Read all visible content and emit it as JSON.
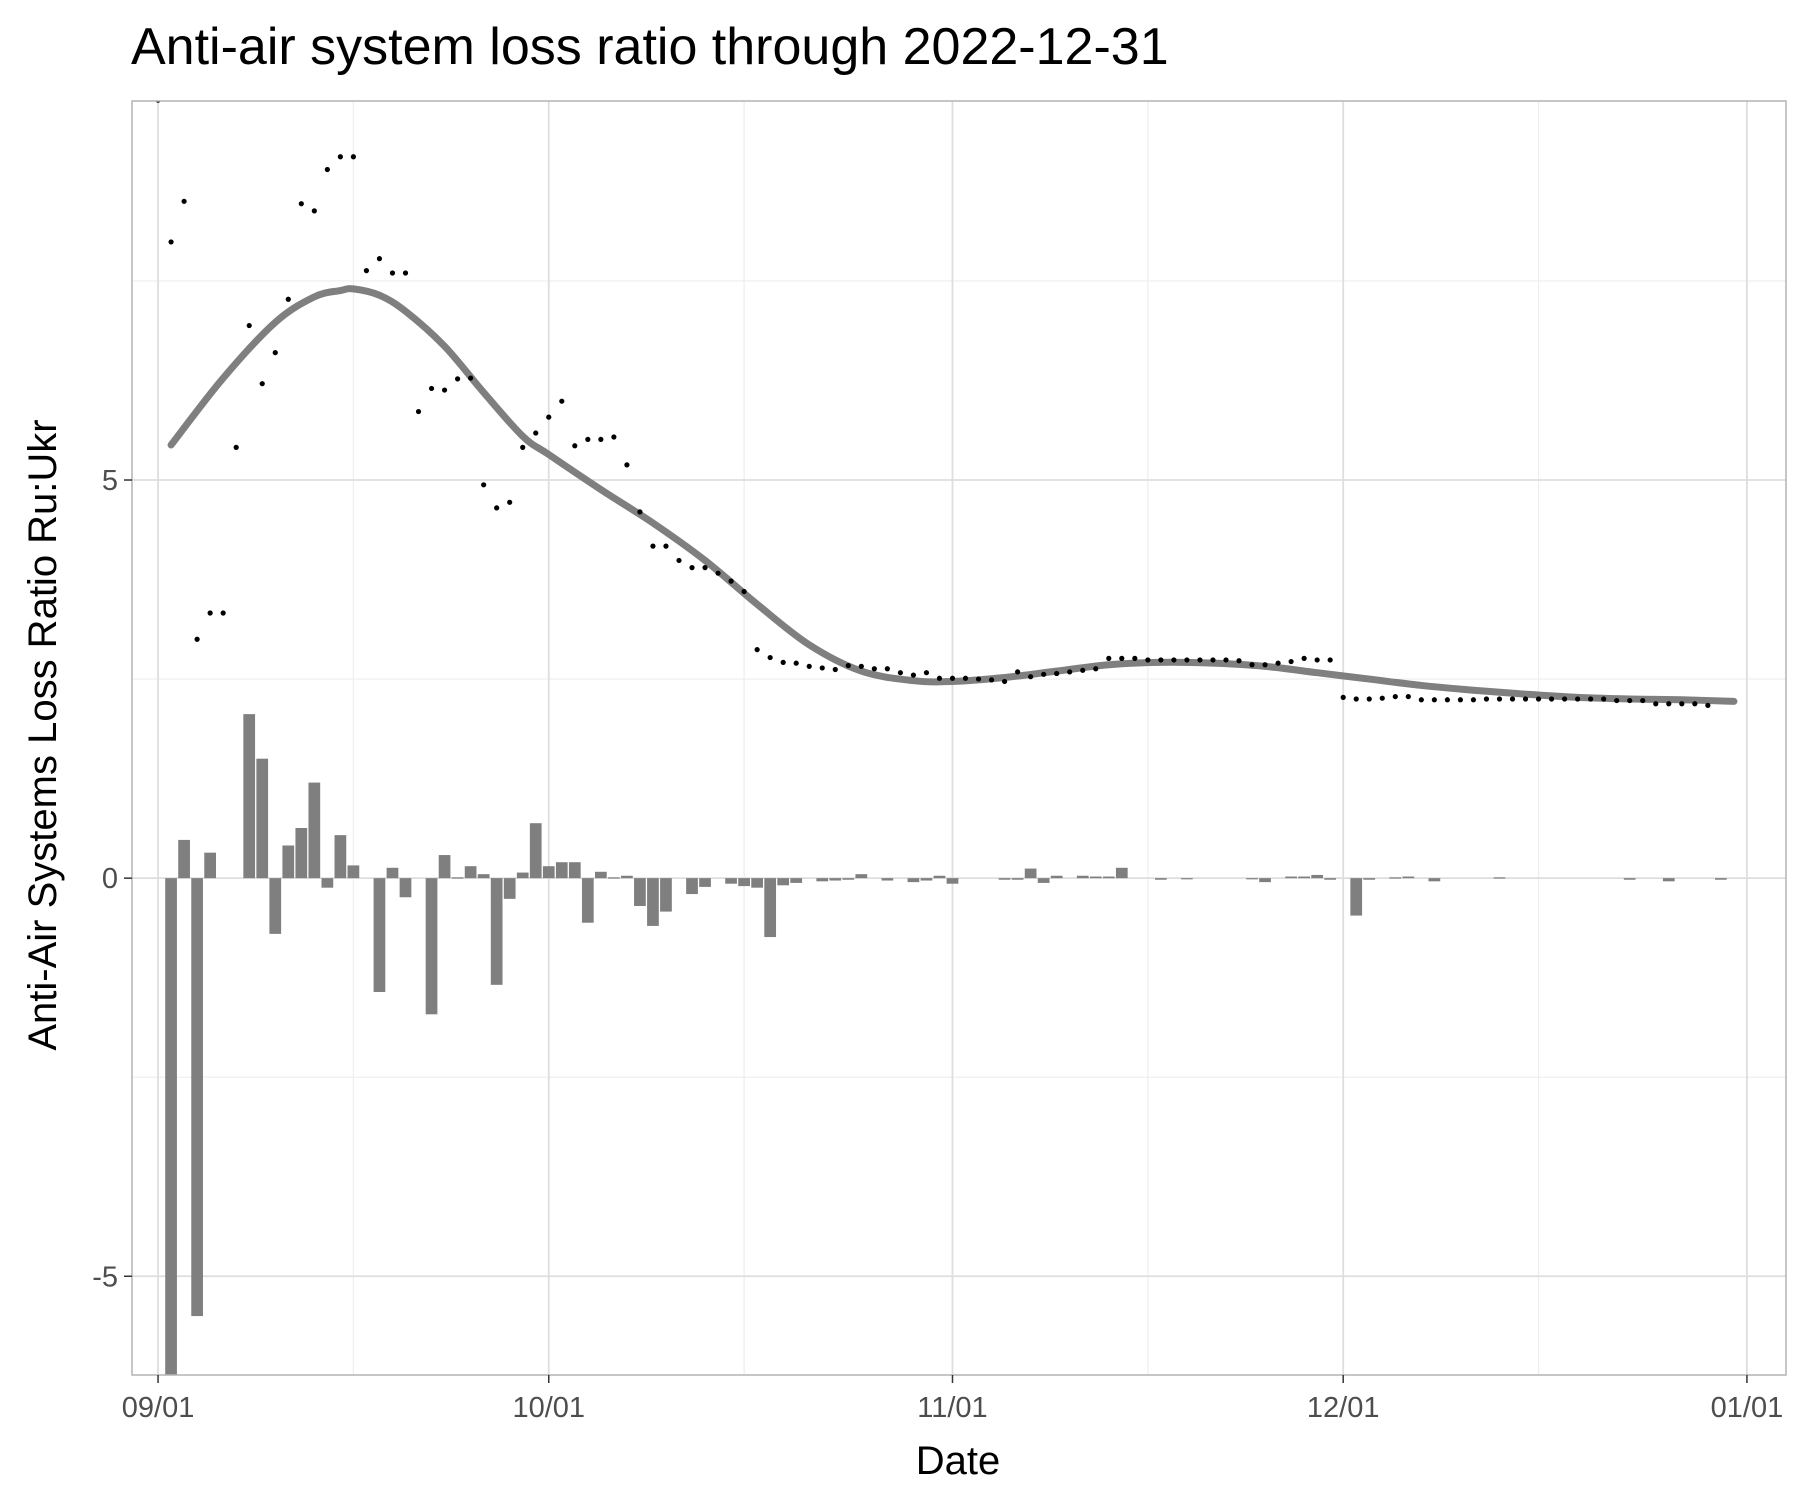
{
  "chart_data": {
    "type": "bar",
    "title": "Anti-air system loss ratio through 2022-12-31",
    "xlabel": "Date",
    "ylabel": "Anti-Air Systems Loss Ratio Ru:Ukr",
    "x_axis": {
      "type": "date",
      "min": "2022-08-30",
      "max": "2023-01-04",
      "ticks": [
        {
          "date": "2022-09-01",
          "label": "09/01"
        },
        {
          "date": "2022-10-01",
          "label": "10/01"
        },
        {
          "date": "2022-11-01",
          "label": "11/01"
        },
        {
          "date": "2022-12-01",
          "label": "12/01"
        },
        {
          "date": "2023-01-01",
          "label": "01/01"
        }
      ],
      "minor_ticks": [
        "2022-09-16",
        "2022-10-16",
        "2022-11-16",
        "2022-12-16"
      ]
    },
    "y_axis": {
      "min": -6.24,
      "max": 9.76,
      "ticks": [
        {
          "value": -5,
          "label": "-5"
        },
        {
          "value": 0,
          "label": "0"
        },
        {
          "value": 5,
          "label": "5"
        }
      ],
      "minor_ticks": [
        -2.5,
        2.5,
        7.5
      ]
    },
    "grid": true,
    "series": [
      {
        "type": "bar",
        "color": "#7f7f7f",
        "start": "2022-09-02",
        "step_days": 1,
        "values": [
          -6.3,
          0.48,
          -5.5,
          0.32,
          0,
          0,
          2.06,
          1.5,
          -0.7,
          0.41,
          0.63,
          1.2,
          -0.12,
          0.54,
          0.16,
          0,
          -1.43,
          0.13,
          -0.24,
          0,
          -1.71,
          0.29,
          0.01,
          0.15,
          0.05,
          -1.34,
          -0.26,
          0.07,
          0.69,
          0.15,
          0.2,
          0.2,
          -0.56,
          0.08,
          0.01,
          0.03,
          -0.35,
          -0.6,
          -0.42,
          0,
          -0.2,
          -0.11,
          0,
          -0.07,
          -0.1,
          -0.12,
          -0.74,
          -0.09,
          -0.06,
          0,
          -0.04,
          -0.03,
          -0.02,
          0.05,
          0,
          -0.03,
          0,
          -0.05,
          -0.03,
          0.03,
          -0.07,
          0,
          0,
          0,
          -0.02,
          -0.02,
          0.12,
          -0.06,
          0.03,
          0,
          0.03,
          0.02,
          0.02,
          0.13,
          0,
          0,
          -0.02,
          0,
          -0.01,
          0,
          0,
          0,
          0,
          -0.01,
          -0.05,
          0,
          0.02,
          0.02,
          0.04,
          -0.02,
          0,
          -0.47,
          -0.02,
          0,
          0.01,
          0.02,
          0,
          -0.04,
          0,
          0,
          0,
          0,
          0.01,
          0,
          0,
          0,
          0,
          0,
          0,
          0,
          0,
          0,
          -0.02,
          0,
          0,
          -0.04,
          0,
          0,
          0,
          -0.02
        ]
      },
      {
        "type": "scatter",
        "color": "#000000",
        "start": "2022-09-01",
        "step_days": 1,
        "values": [
          9.77,
          7.99,
          8.5,
          3.0,
          3.33,
          3.33,
          5.41,
          6.94,
          6.21,
          6.6,
          7.27,
          8.47,
          8.38,
          8.9,
          9.06,
          9.06,
          7.63,
          7.78,
          7.6,
          7.6,
          5.86,
          6.15,
          6.13,
          6.27,
          6.28,
          4.94,
          4.65,
          4.72,
          5.41,
          5.59,
          5.79,
          5.99,
          5.43,
          5.51,
          5.51,
          5.54,
          5.19,
          4.6,
          4.17,
          4.17,
          3.99,
          3.9,
          3.9,
          3.83,
          3.73,
          3.6,
          2.87,
          2.77,
          2.71,
          2.7,
          2.66,
          2.64,
          2.62,
          2.67,
          2.66,
          2.63,
          2.63,
          2.58,
          2.55,
          2.58,
          2.51,
          2.51,
          2.51,
          2.5,
          2.49,
          2.47,
          2.59,
          2.53,
          2.56,
          2.57,
          2.59,
          2.61,
          2.63,
          2.76,
          2.76,
          2.76,
          2.74,
          2.74,
          2.74,
          2.74,
          2.74,
          2.74,
          2.74,
          2.73,
          2.68,
          2.68,
          2.7,
          2.72,
          2.76,
          2.74,
          2.74,
          2.27,
          2.25,
          2.25,
          2.26,
          2.28,
          2.28,
          2.24,
          2.24,
          2.24,
          2.24,
          2.24,
          2.25,
          2.25,
          2.25,
          2.25,
          2.25,
          2.25,
          2.25,
          2.25,
          2.25,
          2.25,
          2.23,
          2.23,
          2.23,
          2.19,
          2.19,
          2.19,
          2.19,
          2.17
        ]
      },
      {
        "type": "line",
        "smooth": true,
        "color": "#7f7f7f",
        "x": [
          "2022-09-02",
          "2022-09-06",
          "2022-09-10",
          "2022-09-13",
          "2022-09-15",
          "2022-09-16",
          "2022-09-18",
          "2022-09-20",
          "2022-09-23",
          "2022-09-26",
          "2022-09-29",
          "2022-10-01",
          "2022-10-05",
          "2022-10-09",
          "2022-10-13",
          "2022-10-17",
          "2022-10-21",
          "2022-10-25",
          "2022-10-29",
          "2022-11-01",
          "2022-11-05",
          "2022-11-09",
          "2022-11-13",
          "2022-11-17",
          "2022-11-21",
          "2022-11-25",
          "2022-11-29",
          "2022-12-03",
          "2022-12-07",
          "2022-12-11",
          "2022-12-15",
          "2022-12-19",
          "2022-12-23",
          "2022-12-27",
          "2022-12-31"
        ],
        "values": [
          5.44,
          6.28,
          6.98,
          7.3,
          7.38,
          7.4,
          7.32,
          7.12,
          6.68,
          6.1,
          5.55,
          5.32,
          4.88,
          4.46,
          3.99,
          3.44,
          2.93,
          2.6,
          2.48,
          2.47,
          2.52,
          2.6,
          2.68,
          2.71,
          2.7,
          2.66,
          2.58,
          2.5,
          2.42,
          2.36,
          2.31,
          2.27,
          2.25,
          2.24,
          2.22
        ]
      }
    ]
  }
}
